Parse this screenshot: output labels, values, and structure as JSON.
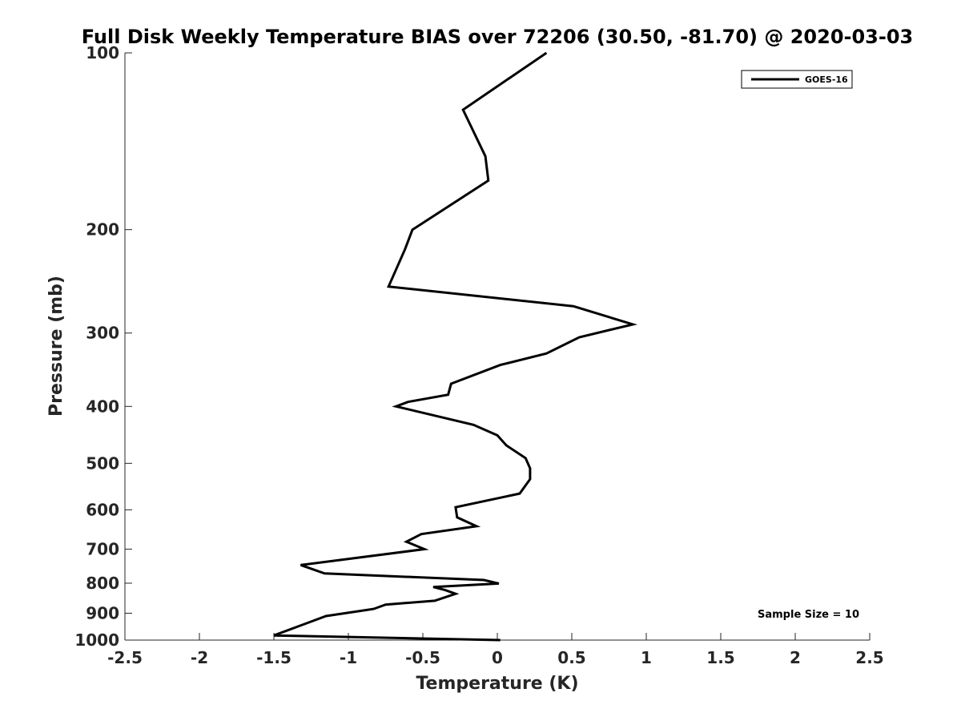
{
  "chart_data": {
    "type": "line",
    "title": "Full Disk Weekly Temperature BIAS over 72206 (30.50, -81.70) @ 2020-03-03",
    "xlabel": "Temperature (K)",
    "ylabel": "Pressure (mb)",
    "xlim": [
      -2.5,
      2.5
    ],
    "ylim": [
      1000,
      100
    ],
    "y_scale": "log",
    "y_reversed": true,
    "x_ticks": [
      "-2.5",
      "-2",
      "-1.5",
      "-1",
      "-0.5",
      "0",
      "0.5",
      "1",
      "1.5",
      "2",
      "2.5"
    ],
    "y_ticks": [
      "100",
      "200",
      "300",
      "400",
      "500",
      "600",
      "700",
      "800",
      "900",
      "1000"
    ],
    "grid": false,
    "legend_position": "top-right",
    "series": [
      {
        "name": "GOES-16",
        "color": "#000000",
        "points": [
          {
            "x": 0.33,
            "y": 100
          },
          {
            "x": -0.23,
            "y": 125
          },
          {
            "x": -0.08,
            "y": 150
          },
          {
            "x": -0.06,
            "y": 165
          },
          {
            "x": -0.57,
            "y": 200
          },
          {
            "x": -0.62,
            "y": 216
          },
          {
            "x": -0.73,
            "y": 250
          },
          {
            "x": 0.51,
            "y": 270
          },
          {
            "x": 0.91,
            "y": 290
          },
          {
            "x": 0.55,
            "y": 305
          },
          {
            "x": 0.33,
            "y": 325
          },
          {
            "x": 0.02,
            "y": 340
          },
          {
            "x": -0.31,
            "y": 366
          },
          {
            "x": -0.33,
            "y": 382
          },
          {
            "x": -0.6,
            "y": 393
          },
          {
            "x": -0.68,
            "y": 400
          },
          {
            "x": -0.16,
            "y": 430
          },
          {
            "x": 0.0,
            "y": 448
          },
          {
            "x": 0.06,
            "y": 466
          },
          {
            "x": 0.19,
            "y": 490
          },
          {
            "x": 0.22,
            "y": 510
          },
          {
            "x": 0.22,
            "y": 532
          },
          {
            "x": 0.15,
            "y": 563
          },
          {
            "x": -0.28,
            "y": 594
          },
          {
            "x": -0.27,
            "y": 618
          },
          {
            "x": -0.14,
            "y": 640
          },
          {
            "x": -0.51,
            "y": 660
          },
          {
            "x": -0.61,
            "y": 680
          },
          {
            "x": -0.49,
            "y": 700
          },
          {
            "x": -1.32,
            "y": 745
          },
          {
            "x": -1.16,
            "y": 770
          },
          {
            "x": -0.09,
            "y": 790
          },
          {
            "x": 0.01,
            "y": 801
          },
          {
            "x": -0.43,
            "y": 812
          },
          {
            "x": -0.35,
            "y": 822
          },
          {
            "x": -0.28,
            "y": 834
          },
          {
            "x": -0.42,
            "y": 857
          },
          {
            "x": -0.75,
            "y": 870
          },
          {
            "x": -0.83,
            "y": 885
          },
          {
            "x": -1.15,
            "y": 910
          },
          {
            "x": -1.5,
            "y": 982
          },
          {
            "x": 0.02,
            "y": 1000
          }
        ]
      }
    ],
    "annotations": [
      {
        "text": "Sample Size = 10"
      }
    ]
  }
}
